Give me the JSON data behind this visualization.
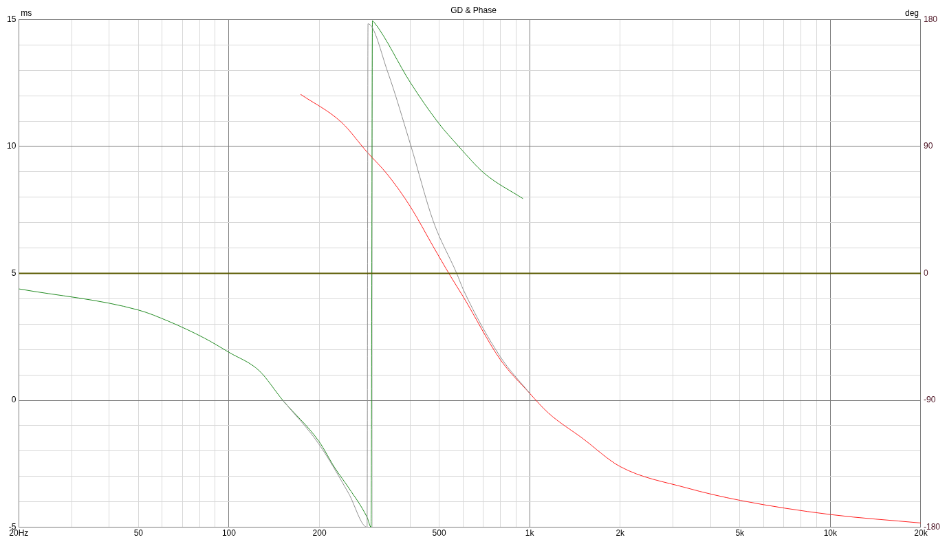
{
  "chart_data": {
    "type": "line",
    "title": "GD & Phase",
    "ylabel": "ms",
    "y2label": "deg",
    "log": "x",
    "grid": true,
    "legend": false,
    "marker": "none",
    "line_style": "solid",
    "xlim": [
      20,
      20000
    ],
    "xticks": [
      {
        "value": 20,
        "label": "20Hz"
      },
      {
        "value": 30,
        "label": null
      },
      {
        "value": 40,
        "label": null
      },
      50,
      {
        "value": 60,
        "label": null
      },
      {
        "value": 70,
        "label": null
      },
      {
        "value": 80,
        "label": null
      },
      {
        "value": 90,
        "label": null
      },
      100,
      200,
      {
        "value": 300,
        "label": null
      },
      {
        "value": 400,
        "label": null
      },
      500,
      {
        "value": 600,
        "label": null
      },
      {
        "value": 700,
        "label": null
      },
      {
        "value": 800,
        "label": null
      },
      {
        "value": 900,
        "label": null
      },
      {
        "value": 1000,
        "label": "1k"
      },
      {
        "value": 2000,
        "label": "2k"
      },
      {
        "value": 3000,
        "label": null
      },
      {
        "value": 4000,
        "label": null
      },
      {
        "value": 5000,
        "label": "5k"
      },
      {
        "value": 6000,
        "label": null
      },
      {
        "value": 7000,
        "label": null
      },
      {
        "value": 8000,
        "label": null
      },
      {
        "value": 9000,
        "label": null
      },
      {
        "value": 10000,
        "label": "10k"
      },
      {
        "value": 20000,
        "label": "20k"
      }
    ],
    "ylim": [
      -5,
      15
    ],
    "yticks": [
      -5,
      {
        "value": -4,
        "label": null
      },
      {
        "value": -3,
        "label": null
      },
      {
        "value": -2,
        "label": null
      },
      {
        "value": -1,
        "label": null
      },
      0,
      {
        "value": 1,
        "label": null
      },
      {
        "value": 2,
        "label": null
      },
      {
        "value": 3,
        "label": null
      },
      {
        "value": 4,
        "label": null
      },
      5,
      {
        "value": 6,
        "label": null
      },
      {
        "value": 7,
        "label": null
      },
      {
        "value": 8,
        "label": null
      },
      {
        "value": 9,
        "label": null
      },
      10,
      {
        "value": 11,
        "label": null
      },
      {
        "value": 12,
        "label": null
      },
      {
        "value": 13,
        "label": null
      },
      {
        "value": 14,
        "label": null
      },
      15
    ],
    "y2lim": [
      -180,
      180
    ],
    "y2ticks": [
      -180,
      -90,
      0,
      90,
      180
    ],
    "series": [
      {
        "color": "#5a5a00",
        "axis": "y2",
        "x": [
          20,
          20000
        ],
        "values": [
          0,
          0
        ]
      },
      {
        "color": "#909090",
        "axis": "y2",
        "x": [
          151,
          199,
          250,
          288,
          290,
          337,
          402,
          478,
          572,
          603,
          798,
          1000
        ],
        "values": [
          -90,
          -121,
          -156,
          -180,
          177,
          143,
          91,
          37,
          0,
          -12,
          -59,
          -85
        ]
      },
      {
        "color": "#ff2020",
        "axis": "y2",
        "x": [
          173,
          237,
          288,
          337,
          402,
          478,
          542,
          603,
          798,
          1000,
          1154,
          1500,
          2000,
          3311,
          5020,
          10000,
          20000
        ],
        "values": [
          127,
          107,
          86,
          70,
          47,
          19,
          -1,
          -17,
          -61,
          -85,
          -99,
          -117,
          -137,
          -152,
          -161,
          -171,
          -177
        ]
      },
      {
        "color": "#228b22",
        "axis": "y2",
        "x": [
          20,
          50,
          63,
          83,
          100,
          126,
          151,
          199,
          225,
          250,
          288,
          297,
          300,
          304,
          402,
          496,
          581,
          706,
          950
        ],
        "values": [
          -11,
          -26,
          -34,
          -46,
          -56,
          -69,
          -90,
          -119,
          -138,
          -152,
          -173,
          -180,
          179,
          178,
          135,
          107,
          90,
          71,
          53
        ]
      }
    ]
  }
}
